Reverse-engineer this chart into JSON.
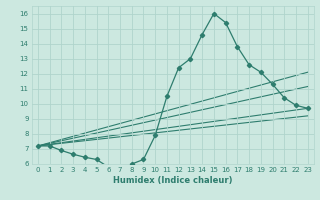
{
  "xlabel": "Humidex (Indice chaleur)",
  "xlim": [
    -0.5,
    23.5
  ],
  "ylim": [
    6,
    16.5
  ],
  "xticks": [
    0,
    1,
    2,
    3,
    4,
    5,
    6,
    7,
    8,
    9,
    10,
    11,
    12,
    13,
    14,
    15,
    16,
    17,
    18,
    19,
    20,
    21,
    22,
    23
  ],
  "yticks": [
    6,
    7,
    8,
    9,
    10,
    11,
    12,
    13,
    14,
    15,
    16
  ],
  "background_color": "#cce8e0",
  "grid_color": "#b0d4cc",
  "line_color": "#2e7d6e",
  "main_curve": {
    "x": [
      0,
      1,
      2,
      3,
      4,
      5,
      6,
      7,
      8,
      9,
      10,
      11,
      12,
      13,
      14,
      15,
      16,
      17,
      18,
      19,
      20,
      21,
      22,
      23
    ],
    "y": [
      7.2,
      7.2,
      6.9,
      6.65,
      6.45,
      6.3,
      5.8,
      5.75,
      6.0,
      6.3,
      7.9,
      10.5,
      12.4,
      13.0,
      14.6,
      16.0,
      15.4,
      13.8,
      12.6,
      12.1,
      11.3,
      10.4,
      9.9,
      9.7
    ]
  },
  "straight_lines": [
    {
      "x": [
        0,
        23
      ],
      "y": [
        7.2,
        12.1
      ]
    },
    {
      "x": [
        0,
        23
      ],
      "y": [
        7.2,
        11.15
      ]
    },
    {
      "x": [
        0,
        23
      ],
      "y": [
        7.2,
        9.7
      ]
    },
    {
      "x": [
        0,
        23
      ],
      "y": [
        7.2,
        9.2
      ]
    }
  ]
}
